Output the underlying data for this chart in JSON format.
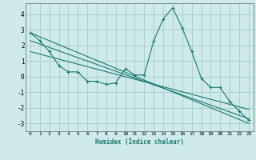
{
  "xlabel": "Humidex (Indice chaleur)",
  "background_color": "#ceeaea",
  "grid_color": "#acd0d0",
  "line_color": "#1a7a6e",
  "xlim": [
    -0.5,
    23.5
  ],
  "ylim": [
    -3.5,
    4.7
  ],
  "yticks": [
    -3,
    -2,
    -1,
    0,
    1,
    2,
    3,
    4
  ],
  "xticks": [
    0,
    1,
    2,
    3,
    4,
    5,
    6,
    7,
    8,
    9,
    10,
    11,
    12,
    13,
    14,
    15,
    16,
    17,
    18,
    19,
    20,
    21,
    22,
    23
  ],
  "series1_x": [
    0,
    1,
    2,
    3,
    4,
    5,
    6,
    7,
    8,
    9,
    10,
    11,
    12,
    13,
    14,
    15,
    16,
    17,
    18,
    19,
    20,
    21,
    22,
    23
  ],
  "series1_y": [
    2.8,
    2.3,
    1.6,
    0.7,
    0.3,
    0.3,
    -0.3,
    -0.3,
    -0.5,
    -0.4,
    0.5,
    0.1,
    0.1,
    2.3,
    3.7,
    4.4,
    3.1,
    1.6,
    -0.1,
    -0.7,
    -0.7,
    -1.6,
    -2.2,
    -2.8
  ],
  "series2_x": [
    0,
    23
  ],
  "series2_y": [
    2.8,
    -3.0
  ],
  "series3_x": [
    0,
    23
  ],
  "series3_y": [
    2.3,
    -2.7
  ],
  "series4_x": [
    0,
    23
  ],
  "series4_y": [
    1.6,
    -2.1
  ]
}
